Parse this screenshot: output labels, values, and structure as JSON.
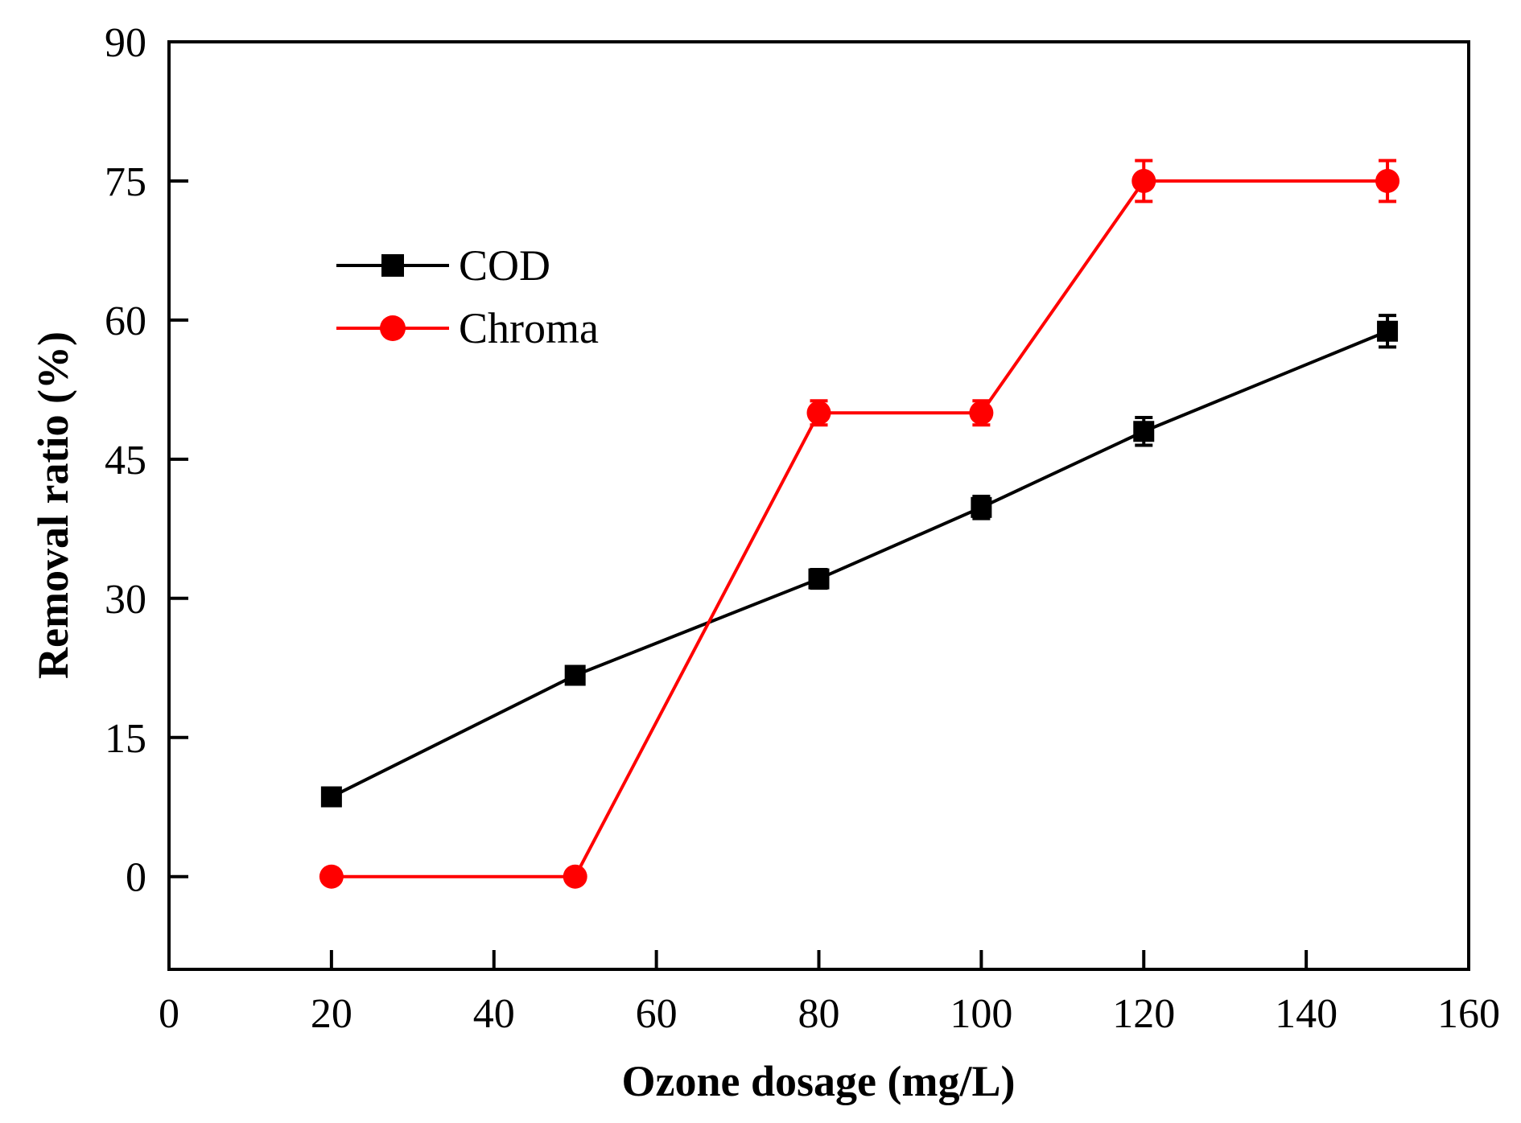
{
  "chart_data": {
    "type": "line",
    "title": "",
    "xlabel": "Ozone dosage (mg/L)",
    "ylabel": "Removal ratio (%)",
    "xlim": [
      0,
      160
    ],
    "ylim": [
      -10,
      90
    ],
    "xticks": [
      0,
      20,
      40,
      60,
      80,
      100,
      120,
      140,
      160
    ],
    "yticks": [
      0,
      15,
      30,
      45,
      60,
      75,
      90
    ],
    "grid": false,
    "legend_position": "upper-left",
    "x": [
      20,
      50,
      80,
      100,
      120,
      150
    ],
    "series": [
      {
        "name": "COD",
        "color": "#000000",
        "marker": "square",
        "values": [
          8.6,
          21.7,
          32.1,
          39.8,
          48.0,
          58.8
        ],
        "errors": [
          0.8,
          0.8,
          1.0,
          1.2,
          1.5,
          1.7
        ]
      },
      {
        "name": "Chroma",
        "color": "#ff0000",
        "marker": "circle",
        "values": [
          0,
          0,
          50,
          50,
          75,
          75
        ],
        "errors": [
          0,
          0,
          1.3,
          1.3,
          2.2,
          2.2
        ]
      }
    ]
  }
}
